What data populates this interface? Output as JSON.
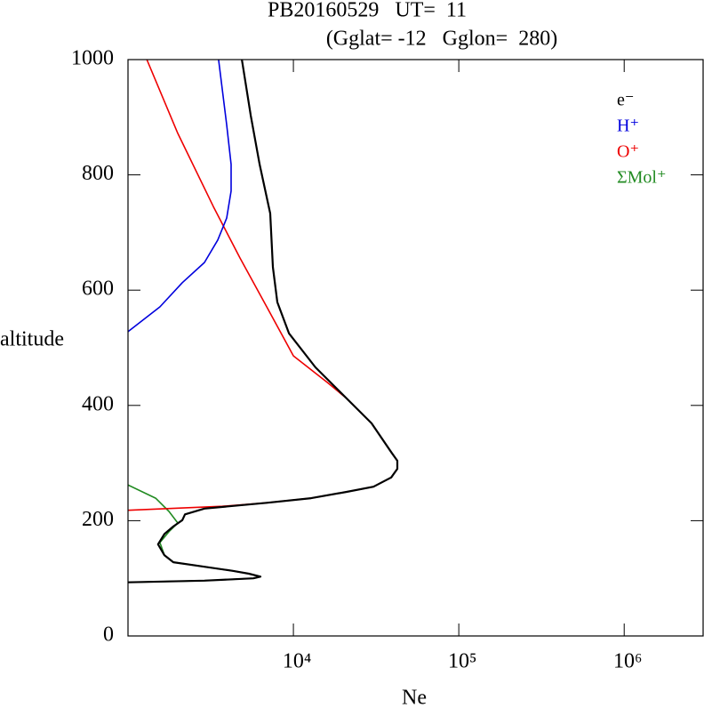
{
  "chart_data": {
    "type": "line",
    "title": "PB20160529   UT=  11",
    "subtitle": "(Gglat= -12   Gglon=  280)",
    "xlabel": "Ne",
    "ylabel": "altitude",
    "xscale": "log",
    "xlim": [
      1000,
      3000000
    ],
    "xticks": [
      {
        "value": 10000,
        "label": "10⁴"
      },
      {
        "value": 100000,
        "label": "10⁵"
      },
      {
        "value": 1000000,
        "label": "10⁶"
      }
    ],
    "ylim": [
      0,
      1000
    ],
    "yticks": [
      0,
      200,
      400,
      600,
      800,
      1000
    ],
    "legend": "upper right",
    "series": [
      {
        "name": "e⁻",
        "color": "#000000",
        "x": [
          1000,
          2900,
          5730,
          6320,
          5380,
          4300,
          2900,
          1880,
          1660,
          1520,
          1660,
          1880,
          2130,
          2210,
          2900,
          6900,
          12800,
          21000,
          30500,
          39000,
          42500,
          42500,
          39000,
          29700,
          21000,
          13600,
          9400,
          8000,
          7520,
          7240,
          6250,
          5520,
          4880
        ],
        "y": [
          93,
          96,
          100,
          103,
          108,
          113,
          120,
          128,
          140,
          159,
          177,
          190,
          201,
          211,
          221,
          231,
          239,
          250,
          259,
          275,
          290,
          304,
          319,
          369,
          412,
          466,
          525,
          579,
          640,
          733,
          818,
          903,
          1000
        ]
      },
      {
        "name": "H⁺",
        "color": "#0000dd",
        "x": [
          1000,
          1560,
          2130,
          2900,
          3490,
          3950,
          4200,
          4200,
          3950,
          3530
        ],
        "y": [
          528,
          571,
          613,
          648,
          687,
          725,
          772,
          818,
          887,
          1000
        ]
      },
      {
        "name": "O⁺",
        "color": "#ee0000",
        "x": [
          1000,
          3720,
          6900,
          12800,
          21000,
          30500,
          39000,
          42500,
          42500,
          39000,
          29700,
          21000,
          16000,
          10000,
          6900,
          4750,
          3280,
          2000,
          1300
        ],
        "y": [
          218,
          225,
          231,
          239,
          250,
          259,
          275,
          290,
          304,
          319,
          369,
          412,
          440,
          486,
          571,
          656,
          745,
          872,
          1000
        ]
      },
      {
        "name": "ΣMol⁺",
        "color": "#228b22",
        "x": [
          1000,
          2900,
          5730,
          6320,
          5380,
          4300,
          2900,
          1880,
          1660,
          1560,
          1770,
          2000,
          1770,
          1470,
          1000
        ],
        "y": [
          93,
          96,
          100,
          103,
          108,
          113,
          120,
          128,
          140,
          162,
          181,
          196,
          216,
          239,
          262
        ]
      }
    ]
  }
}
